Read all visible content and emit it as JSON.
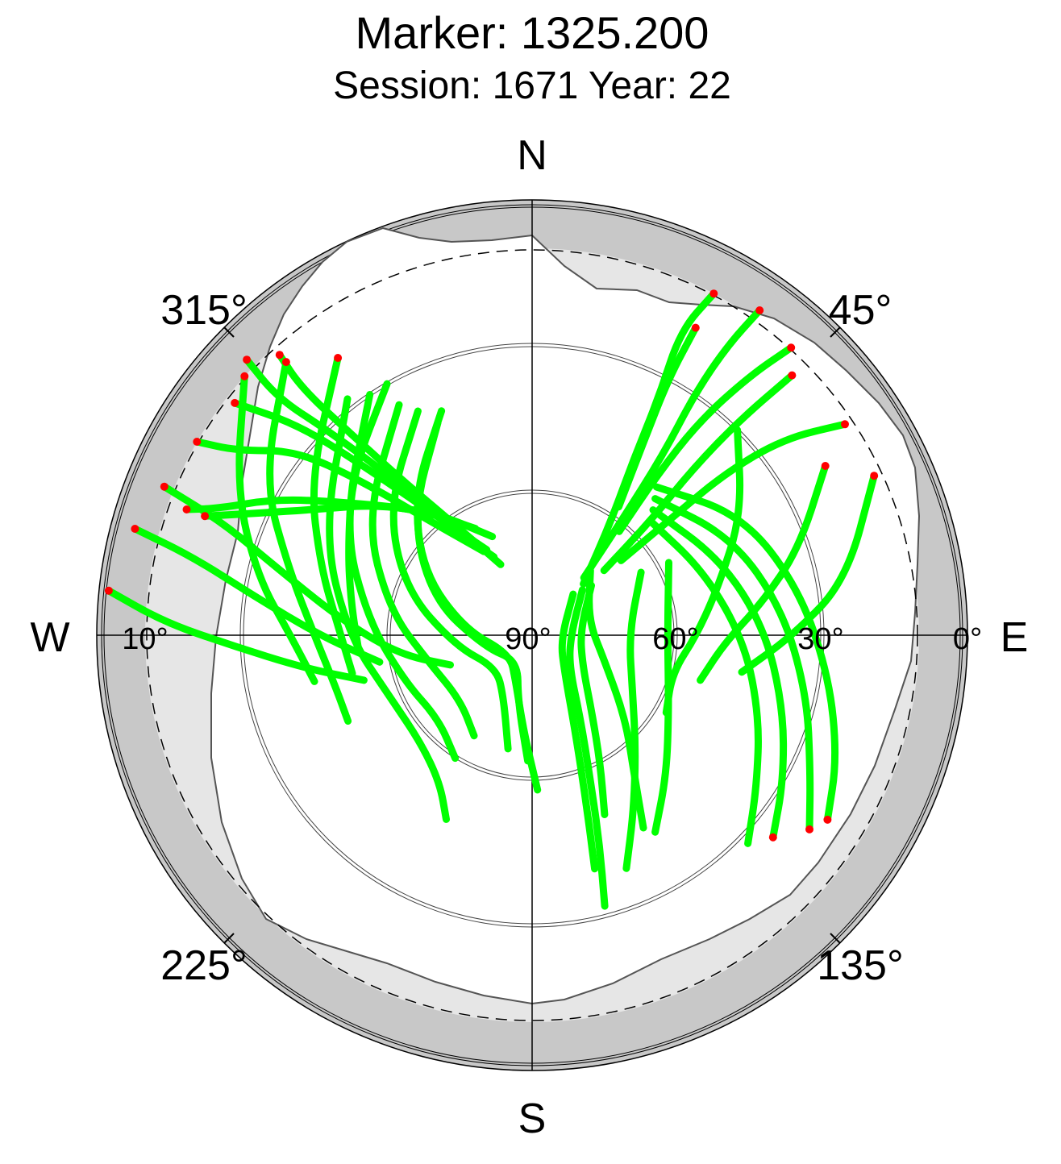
{
  "chart_data": {
    "type": "scatter",
    "projection": "polar-skyplot",
    "title": "Marker: 1325.200",
    "subtitle": "Session: 1671 Year: 22",
    "compass": {
      "north": "N",
      "south": "S",
      "east": "E",
      "west": "W"
    },
    "azimuth_labels": [
      "315°",
      "45°",
      "225°",
      "135°"
    ],
    "elevation_labels": [
      "10°",
      "90°",
      "60°",
      "30°",
      "0°"
    ],
    "elevation_range": [
      0,
      90
    ],
    "elevation_circles": [
      30,
      60
    ],
    "cutoff_elevation": 10,
    "grid": true,
    "colors": {
      "track": "#00ff00",
      "endpoint": "#ff0000",
      "mask_fill": "#e6e6e6",
      "outer_ring": "#c8c8c8",
      "axis": "#000000"
    },
    "series": [
      {
        "name": "",
        "tracks": [
          {
            "points": [
              [
                70,
                330
              ],
              [
                58,
                318
              ],
              [
                42,
                312
              ],
              [
                28,
                308
              ],
              [
                18,
                302
              ],
              [
                10,
                300
              ]
            ]
          },
          {
            "points": [
              [
                70,
                332
              ],
              [
                56,
                320
              ],
              [
                40,
                315
              ],
              [
                25,
                312
              ],
              [
                12,
                308
              ]
            ]
          },
          {
            "points": [
              [
                72,
                334
              ],
              [
                60,
                322
              ],
              [
                45,
                318
              ],
              [
                30,
                315
              ],
              [
                18,
                313
              ],
              [
                8,
                314
              ]
            ]
          },
          {
            "points": [
              [
                74,
                336
              ],
              [
                62,
                325
              ],
              [
                48,
                320
              ],
              [
                34,
                318
              ],
              [
                20,
                317
              ],
              [
                12,
                318
              ]
            ]
          },
          {
            "points": [
              [
                65,
                332
              ],
              [
                55,
                318
              ],
              [
                42,
                305
              ],
              [
                30,
                298
              ],
              [
                20,
                292
              ],
              [
                14,
                290
              ]
            ]
          },
          {
            "points": [
              [
                68,
                338
              ],
              [
                58,
                322
              ],
              [
                48,
                310
              ],
              [
                38,
                300
              ],
              [
                28,
                294
              ],
              [
                18,
                290
              ]
            ]
          },
          {
            "points": [
              [
                30,
                330
              ],
              [
                40,
                312
              ],
              [
                48,
                295
              ],
              [
                52,
                280
              ],
              [
                54,
                265
              ]
            ]
          },
          {
            "points": [
              [
                20,
                325
              ],
              [
                34,
                305
              ],
              [
                44,
                288
              ],
              [
                50,
                272
              ],
              [
                52,
                258
              ]
            ]
          },
          {
            "points": [
              [
                14,
                318
              ],
              [
                26,
                300
              ],
              [
                38,
                285
              ],
              [
                45,
                270
              ],
              [
                48,
                255
              ],
              [
                48,
                245
              ]
            ]
          },
          {
            "points": [
              [
                10,
                312
              ],
              [
                22,
                296
              ],
              [
                32,
                282
              ],
              [
                40,
                270
              ],
              [
                44,
                258
              ]
            ]
          },
          {
            "points": [
              [
                8,
                292
              ],
              [
                22,
                290
              ],
              [
                35,
                285
              ],
              [
                50,
                275
              ],
              [
                62,
                262
              ],
              [
                72,
                250
              ]
            ]
          },
          {
            "points": [
              [
                5,
                285
              ],
              [
                18,
                283
              ],
              [
                32,
                278
              ],
              [
                46,
                270
              ],
              [
                58,
                260
              ]
            ]
          },
          {
            "points": [
              [
                2,
                276
              ],
              [
                14,
                272
              ],
              [
                28,
                268
              ],
              [
                42,
                262
              ],
              [
                54,
                255
              ]
            ]
          },
          {
            "points": [
              [
                40,
                338
              ],
              [
                52,
                320
              ],
              [
                64,
                300
              ],
              [
                76,
                275
              ],
              [
                84,
                230
              ],
              [
                80,
                200
              ],
              [
                70,
                185
              ],
              [
                58,
                178
              ]
            ]
          },
          {
            "points": [
              [
                42,
                336
              ],
              [
                55,
                315
              ],
              [
                68,
                290
              ],
              [
                80,
                255
              ],
              [
                84,
                210
              ],
              [
                76,
                192
              ],
              [
                64,
                182
              ]
            ]
          },
          {
            "points": [
              [
                38,
                333
              ],
              [
                50,
                312
              ],
              [
                62,
                290
              ],
              [
                74,
                262
              ],
              [
                80,
                228
              ],
              [
                76,
                205
              ],
              [
                66,
                192
              ]
            ]
          },
          {
            "points": [
              [
                35,
                330
              ],
              [
                48,
                305
              ],
              [
                60,
                280
              ],
              [
                68,
                255
              ],
              [
                70,
                228
              ],
              [
                66,
                210
              ]
            ]
          },
          {
            "points": [
              [
                30,
                326
              ],
              [
                45,
                300
              ],
              [
                56,
                275
              ],
              [
                62,
                250
              ],
              [
                64,
                228
              ],
              [
                60,
                212
              ]
            ]
          },
          {
            "points": [
              [
                28,
                322
              ],
              [
                42,
                296
              ],
              [
                52,
                270
              ],
              [
                58,
                246
              ],
              [
                58,
                226
              ],
              [
                54,
                212
              ],
              [
                48,
                205
              ]
            ]
          },
          {
            "points": [
              [
                75,
                45
              ],
              [
                62,
                35
              ],
              [
                48,
                30
              ],
              [
                34,
                28
              ],
              [
                20,
                26
              ],
              [
                10,
                28
              ]
            ]
          },
          {
            "points": [
              [
                74,
                42
              ],
              [
                60,
                38
              ],
              [
                44,
                36
              ],
              [
                30,
                34
              ],
              [
                18,
                34
              ],
              [
                8,
                35
              ]
            ]
          },
          {
            "points": [
              [
                70,
                48
              ],
              [
                56,
                46
              ],
              [
                42,
                44
              ],
              [
                28,
                44
              ],
              [
                14,
                45
              ]
            ]
          },
          {
            "points": [
              [
                66,
                50
              ],
              [
                52,
                50
              ],
              [
                38,
                50
              ],
              [
                24,
                52
              ],
              [
                12,
                56
              ]
            ]
          },
          {
            "points": [
              [
                62,
                40
              ],
              [
                48,
                38
              ],
              [
                34,
                38
              ],
              [
                20,
                40
              ],
              [
                10,
                42
              ]
            ]
          },
          {
            "points": [
              [
                58,
                34
              ],
              [
                44,
                30
              ],
              [
                30,
                28
              ],
              [
                18,
                28
              ]
            ]
          },
          {
            "points": [
              [
                50,
                40
              ],
              [
                40,
                60
              ],
              [
                34,
                80
              ],
              [
                28,
                98
              ],
              [
                22,
                112
              ],
              [
                18,
                122
              ]
            ]
          },
          {
            "points": [
              [
                52,
                42
              ],
              [
                44,
                64
              ],
              [
                38,
                84
              ],
              [
                32,
                102
              ],
              [
                26,
                116
              ],
              [
                20,
                125
              ]
            ]
          },
          {
            "points": [
              [
                54,
                44
              ],
              [
                48,
                68
              ],
              [
                42,
                88
              ],
              [
                36,
                106
              ],
              [
                30,
                120
              ],
              [
                25,
                130
              ]
            ]
          },
          {
            "points": [
              [
                56,
                46
              ],
              [
                52,
                70
              ],
              [
                46,
                92
              ],
              [
                40,
                110
              ],
              [
                34,
                124
              ],
              [
                28,
                134
              ]
            ]
          },
          {
            "points": [
              [
                76,
                48
              ],
              [
                82,
                90
              ],
              [
                80,
                130
              ],
              [
                70,
                150
              ],
              [
                58,
                158
              ],
              [
                45,
                162
              ],
              [
                32,
                165
              ]
            ]
          },
          {
            "points": [
              [
                78,
                45
              ],
              [
                84,
                100
              ],
              [
                80,
                138
              ],
              [
                68,
                156
              ],
              [
                54,
                162
              ],
              [
                40,
                165
              ]
            ]
          },
          {
            "points": [
              [
                74,
                50
              ],
              [
                80,
                85
              ],
              [
                78,
                120
              ],
              [
                70,
                142
              ],
              [
                60,
                152
              ],
              [
                50,
                158
              ]
            ]
          },
          {
            "points": [
              [
                72,
                42
              ],
              [
                78,
                75
              ],
              [
                74,
                110
              ],
              [
                64,
                132
              ],
              [
                54,
                144
              ],
              [
                44,
                150
              ]
            ]
          },
          {
            "points": [
              [
                64,
                60
              ],
              [
                70,
                90
              ],
              [
                66,
                120
              ],
              [
                58,
                138
              ],
              [
                48,
                150
              ],
              [
                38,
                158
              ]
            ]
          },
          {
            "points": [
              [
                58,
                62
              ],
              [
                62,
                90
              ],
              [
                58,
                118
              ],
              [
                50,
                136
              ],
              [
                42,
                148
              ]
            ]
          },
          {
            "points": [
              [
                30,
                45
              ],
              [
                40,
                60
              ],
              [
                50,
                75
              ],
              [
                56,
                90
              ],
              [
                60,
                105
              ],
              [
                58,
                120
              ]
            ]
          },
          {
            "points": [
              [
                20,
                60
              ],
              [
                32,
                72
              ],
              [
                42,
                82
              ],
              [
                50,
                92
              ],
              [
                54,
                105
              ]
            ]
          },
          {
            "points": [
              [
                12,
                65
              ],
              [
                24,
                80
              ],
              [
                36,
                90
              ],
              [
                46,
                100
              ]
            ]
          }
        ]
      }
    ]
  }
}
